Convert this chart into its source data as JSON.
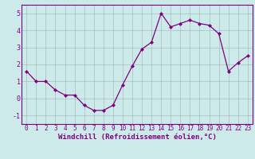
{
  "x": [
    0,
    1,
    2,
    3,
    4,
    5,
    6,
    7,
    8,
    9,
    10,
    11,
    12,
    13,
    14,
    15,
    16,
    17,
    18,
    19,
    20,
    21,
    22,
    23
  ],
  "y": [
    1.6,
    1.0,
    1.0,
    0.5,
    0.2,
    0.2,
    -0.4,
    -0.7,
    -0.7,
    -0.4,
    0.8,
    1.9,
    2.9,
    3.3,
    5.0,
    4.2,
    4.4,
    4.6,
    4.4,
    4.3,
    3.8,
    1.6,
    2.1,
    2.5
  ],
  "line_color": "#800080",
  "marker": "D",
  "marker_size": 2.0,
  "bg_color": "#cceaea",
  "grid_color": "#aabbbb",
  "xlabel": "Windchill (Refroidissement éolien,°C)",
  "xlabel_color": "#800080",
  "tick_color": "#800080",
  "ylim": [
    -1.5,
    5.5
  ],
  "xlim": [
    -0.5,
    23.5
  ],
  "yticks": [
    -1,
    0,
    1,
    2,
    3,
    4,
    5
  ],
  "xticks": [
    0,
    1,
    2,
    3,
    4,
    5,
    6,
    7,
    8,
    9,
    10,
    11,
    12,
    13,
    14,
    15,
    16,
    17,
    18,
    19,
    20,
    21,
    22,
    23
  ],
  "spine_color": "#800080",
  "axis_bg": "#cceaea",
  "tick_fontsize": 5.5,
  "xlabel_fontsize": 6.5,
  "ylabel_fontsize": 6.5
}
